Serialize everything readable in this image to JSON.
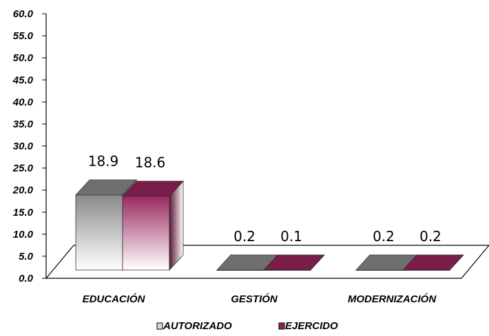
{
  "chart_data": {
    "type": "bar",
    "title": "",
    "xlabel": "",
    "ylabel": "",
    "categories": [
      "EDUCACIÓN",
      "GESTIÓN",
      "MODERNIZACIÓN"
    ],
    "series": [
      {
        "name": "AUTORIZADO",
        "values": [
          18.9,
          0.2,
          0.2
        ],
        "labels": [
          "18.9",
          "0.2",
          "0.2"
        ],
        "color": "#808080"
      },
      {
        "name": "EJERCIDO",
        "values": [
          18.6,
          0.1,
          0.2
        ],
        "labels": [
          "18.6",
          "0.1",
          "0.2"
        ],
        "color": "#8b2252"
      }
    ],
    "ylim": [
      0,
      60
    ],
    "yticks": [
      "0.0",
      "5.0",
      "10.0",
      "15.0",
      "20.0",
      "25.0",
      "30.0",
      "35.0",
      "40.0",
      "45.0",
      "50.0",
      "55.0",
      "60.0"
    ],
    "grid": false,
    "legend": "bottom",
    "style": "3d-column"
  }
}
